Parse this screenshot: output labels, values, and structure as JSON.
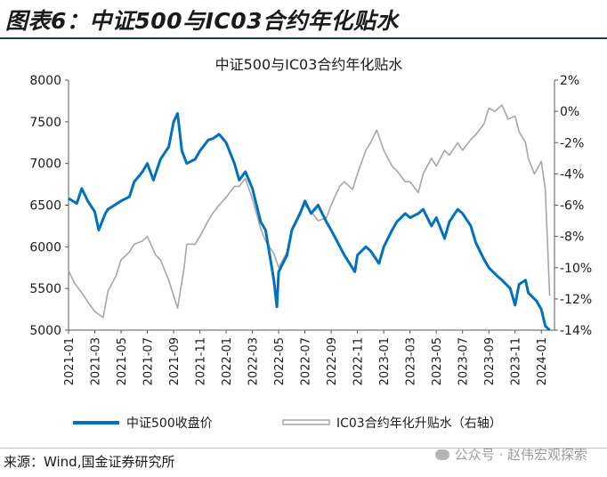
{
  "figure_title": "图表6：中证500与IC03合约年化贴水",
  "source": "来源：Wind,国金证券研究所",
  "watermark": "公众号 · 赵伟宏观探索",
  "colors": {
    "index": "#0070c0",
    "basis": "#a6a6a6",
    "rule": "#1f3864"
  },
  "chart_data": {
    "type": "line",
    "title": "中证500与IC03合约年化贴水",
    "x_ticks": [
      "2021-01",
      "2021-03",
      "2021-05",
      "2021-07",
      "2021-09",
      "2021-11",
      "2022-01",
      "2022-03",
      "2022-05",
      "2022-07",
      "2022-09",
      "2022-11",
      "2023-01",
      "2023-03",
      "2023-05",
      "2023-07",
      "2023-09",
      "2023-11",
      "2024-01"
    ],
    "xlim": [
      "2021-01",
      "2024-02"
    ],
    "y_left": {
      "ylim": [
        5000,
        8000
      ],
      "ticks": [
        "5000",
        "5500",
        "6000",
        "6500",
        "7000",
        "7500",
        "8000"
      ]
    },
    "y_right": {
      "ylim": [
        -14,
        2
      ],
      "ticks": [
        "-14%",
        "-12%",
        "-10%",
        "-8%",
        "-6%",
        "-4%",
        "-2%",
        "0%",
        "2%"
      ]
    },
    "legend_position": "bottom",
    "series": [
      {
        "name": "中证500收盘价",
        "axis": "left",
        "points": [
          [
            "2021-01",
            6580
          ],
          [
            "2021-01-20",
            6520
          ],
          [
            "2021-02",
            6700
          ],
          [
            "2021-02-15",
            6550
          ],
          [
            "2021-03",
            6420
          ],
          [
            "2021-03-10",
            6200
          ],
          [
            "2021-03-25",
            6400
          ],
          [
            "2021-04",
            6450
          ],
          [
            "2021-05",
            6550
          ],
          [
            "2021-05-20",
            6600
          ],
          [
            "2021-06",
            6780
          ],
          [
            "2021-06-20",
            6900
          ],
          [
            "2021-07",
            7000
          ],
          [
            "2021-07-15",
            6800
          ],
          [
            "2021-08",
            7050
          ],
          [
            "2021-08-20",
            7200
          ],
          [
            "2021-09",
            7500
          ],
          [
            "2021-09-10",
            7600
          ],
          [
            "2021-09-20",
            7150
          ],
          [
            "2021-10",
            7000
          ],
          [
            "2021-10-20",
            7050
          ],
          [
            "2021-11",
            7150
          ],
          [
            "2021-11-20",
            7280
          ],
          [
            "2021-12",
            7300
          ],
          [
            "2021-12-15",
            7350
          ],
          [
            "2022-01",
            7250
          ],
          [
            "2022-01-20",
            7000
          ],
          [
            "2022-02",
            6800
          ],
          [
            "2022-02-15",
            6900
          ],
          [
            "2022-03",
            6700
          ],
          [
            "2022-03-20",
            6300
          ],
          [
            "2022-04",
            6200
          ],
          [
            "2022-04-20",
            5600
          ],
          [
            "2022-04-27",
            5280
          ],
          [
            "2022-05",
            5700
          ],
          [
            "2022-05-20",
            5900
          ],
          [
            "2022-06",
            6200
          ],
          [
            "2022-06-20",
            6400
          ],
          [
            "2022-07",
            6550
          ],
          [
            "2022-07-15",
            6400
          ],
          [
            "2022-08",
            6500
          ],
          [
            "2022-08-20",
            6300
          ],
          [
            "2022-09",
            6200
          ],
          [
            "2022-10",
            5900
          ],
          [
            "2022-10-25",
            5700
          ],
          [
            "2022-11",
            5900
          ],
          [
            "2022-11-20",
            6000
          ],
          [
            "2022-12",
            5950
          ],
          [
            "2022-12-20",
            5800
          ],
          [
            "2023-01",
            6000
          ],
          [
            "2023-01-20",
            6200
          ],
          [
            "2023-02",
            6300
          ],
          [
            "2023-02-20",
            6400
          ],
          [
            "2023-03",
            6350
          ],
          [
            "2023-03-20",
            6400
          ],
          [
            "2023-04",
            6450
          ],
          [
            "2023-04-20",
            6250
          ],
          [
            "2023-05",
            6350
          ],
          [
            "2023-05-20",
            6100
          ],
          [
            "2023-06",
            6300
          ],
          [
            "2023-06-20",
            6450
          ],
          [
            "2023-07",
            6400
          ],
          [
            "2023-07-20",
            6250
          ],
          [
            "2023-08",
            6050
          ],
          [
            "2023-08-20",
            5850
          ],
          [
            "2023-09",
            5750
          ],
          [
            "2023-09-20",
            5650
          ],
          [
            "2023-10",
            5600
          ],
          [
            "2023-10-20",
            5500
          ],
          [
            "2023-11",
            5300
          ],
          [
            "2023-11-10",
            5550
          ],
          [
            "2023-11-25",
            5600
          ],
          [
            "2023-12",
            5450
          ],
          [
            "2023-12-20",
            5350
          ],
          [
            "2024-01",
            5250
          ],
          [
            "2024-01-10",
            5050
          ],
          [
            "2024-01-20",
            5000
          ]
        ]
      },
      {
        "name": "IC03合约年化升贴水（右轴）",
        "axis": "right",
        "points": [
          [
            "2021-01",
            -10.2
          ],
          [
            "2021-01-15",
            -11
          ],
          [
            "2021-02",
            -11.6
          ],
          [
            "2021-02-20",
            -12.4
          ],
          [
            "2021-03",
            -12.8
          ],
          [
            "2021-03-20",
            -13.2
          ],
          [
            "2021-04",
            -11.5
          ],
          [
            "2021-04-20",
            -10.5
          ],
          [
            "2021-05",
            -9.5
          ],
          [
            "2021-05-20",
            -9
          ],
          [
            "2021-06",
            -8.5
          ],
          [
            "2021-06-20",
            -8.3
          ],
          [
            "2021-07",
            -8
          ],
          [
            "2021-07-20",
            -9.2
          ],
          [
            "2021-08",
            -9.5
          ],
          [
            "2021-08-20",
            -10.8
          ],
          [
            "2021-09",
            -11.8
          ],
          [
            "2021-09-10",
            -12.6
          ],
          [
            "2021-09-25",
            -10
          ],
          [
            "2021-10",
            -8.5
          ],
          [
            "2021-10-20",
            -8.5
          ],
          [
            "2021-11",
            -8
          ],
          [
            "2021-11-20",
            -7
          ],
          [
            "2021-12",
            -6.5
          ],
          [
            "2021-12-15",
            -6
          ],
          [
            "2022-01",
            -5.5
          ],
          [
            "2022-01-20",
            -4.8
          ],
          [
            "2022-02",
            -4.8
          ],
          [
            "2022-02-15",
            -4.3
          ],
          [
            "2022-03",
            -5.6
          ],
          [
            "2022-03-20",
            -7.5
          ],
          [
            "2022-04",
            -8.3
          ],
          [
            "2022-04-20",
            -9.1
          ],
          [
            "2022-05",
            -10
          ],
          [
            "2022-05-20",
            -9
          ],
          [
            "2022-06",
            -7.5
          ],
          [
            "2022-06-20",
            -6.4
          ],
          [
            "2022-07",
            -6
          ],
          [
            "2022-07-20",
            -6.6
          ],
          [
            "2022-08",
            -7
          ],
          [
            "2022-08-20",
            -6.8
          ],
          [
            "2022-09",
            -6
          ],
          [
            "2022-09-20",
            -4.8
          ],
          [
            "2022-10",
            -4.5
          ],
          [
            "2022-10-20",
            -5
          ],
          [
            "2022-11",
            -4
          ],
          [
            "2022-11-20",
            -2.5
          ],
          [
            "2022-12",
            -2
          ],
          [
            "2022-12-15",
            -1.2
          ],
          [
            "2023-01",
            -2.5
          ],
          [
            "2023-01-20",
            -3.5
          ],
          [
            "2023-02",
            -3.8
          ],
          [
            "2023-02-20",
            -4.5
          ],
          [
            "2023-03",
            -4.5
          ],
          [
            "2023-03-20",
            -5.2
          ],
          [
            "2023-04",
            -4
          ],
          [
            "2023-04-20",
            -3
          ],
          [
            "2023-05",
            -3.5
          ],
          [
            "2023-05-20",
            -2.5
          ],
          [
            "2023-06",
            -2.8
          ],
          [
            "2023-06-20",
            -2
          ],
          [
            "2023-07",
            -2.5
          ],
          [
            "2023-07-20",
            -1.8
          ],
          [
            "2023-08",
            -1.5
          ],
          [
            "2023-08-20",
            -0.8
          ],
          [
            "2023-09",
            0.2
          ],
          [
            "2023-09-15",
            0
          ],
          [
            "2023-10",
            0.4
          ],
          [
            "2023-10-15",
            -0.5
          ],
          [
            "2023-11",
            -0.3
          ],
          [
            "2023-11-10",
            -1.3
          ],
          [
            "2023-11-25",
            -2
          ],
          [
            "2023-12",
            -3
          ],
          [
            "2023-12-15",
            -4
          ],
          [
            "2024-01",
            -3.2
          ],
          [
            "2024-01-10",
            -5
          ],
          [
            "2024-01-20",
            -11.8
          ]
        ]
      }
    ]
  }
}
